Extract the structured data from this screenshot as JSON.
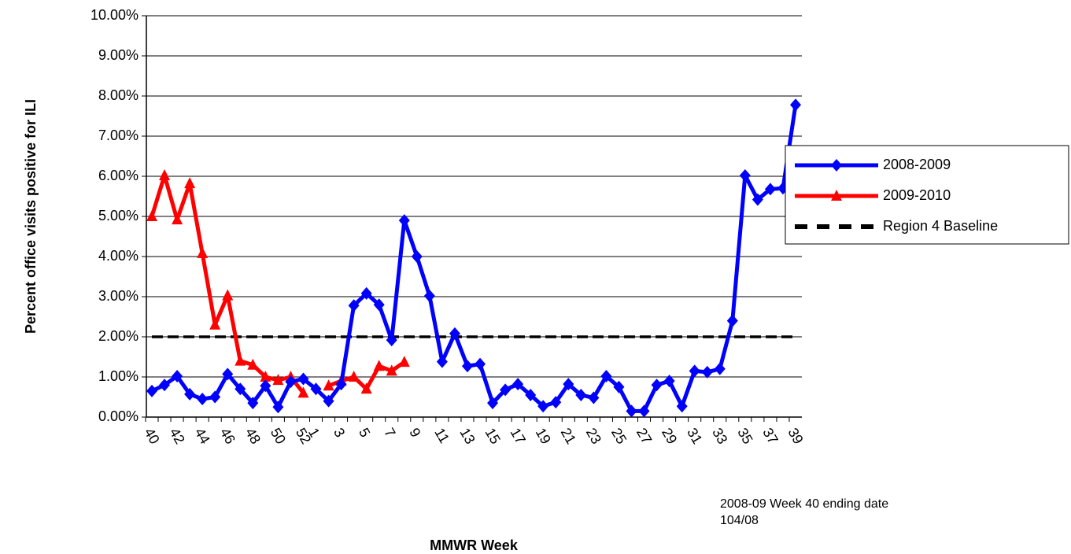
{
  "chart_data": {
    "type": "line",
    "y_label": "Percent office visits positive for ILI",
    "x_label": "MMWR Week",
    "note": [
      "2008-09 Week 40 ending date",
      "104/08"
    ],
    "categories": [
      "40",
      null,
      "42",
      null,
      "44",
      null,
      "46",
      null,
      "48",
      null,
      "50",
      null,
      "52",
      "1",
      null,
      "3",
      null,
      "5",
      null,
      "7",
      null,
      "9",
      null,
      "11",
      null,
      "13",
      null,
      "15",
      null,
      "17",
      null,
      "19",
      null,
      "21",
      null,
      "23",
      null,
      "25",
      null,
      "27",
      null,
      "29",
      null,
      "31",
      null,
      "33",
      null,
      "35",
      null,
      "37",
      null,
      "39"
    ],
    "series": [
      {
        "name": "2008-2009",
        "color": "#0000ff",
        "marker": "diamond",
        "values": [
          0.65,
          0.8,
          1.02,
          0.57,
          0.45,
          0.5,
          1.07,
          0.7,
          0.35,
          0.78,
          0.25,
          0.88,
          0.95,
          0.7,
          0.4,
          0.82,
          2.78,
          3.08,
          2.8,
          1.92,
          4.9,
          4.0,
          3.02,
          1.38,
          2.08,
          1.27,
          1.32,
          0.35,
          0.68,
          0.82,
          0.55,
          0.27,
          0.37,
          0.82,
          0.55,
          0.48,
          1.02,
          0.75,
          0.15,
          0.15,
          0.8,
          0.9,
          0.27,
          1.15,
          1.12,
          1.2,
          2.4,
          6.02,
          5.42,
          5.68,
          5.7,
          7.78
        ]
      },
      {
        "name": "2009-2010",
        "color": "#ff0000",
        "marker": "triangle",
        "values": [
          5.0,
          6.02,
          4.92,
          5.82,
          4.08,
          2.3,
          3.03,
          1.4,
          1.3,
          1.0,
          0.92,
          1.0,
          0.6,
          null,
          0.78,
          0.9,
          1.0,
          0.7,
          1.27,
          1.15,
          1.37,
          null,
          null,
          null,
          null,
          null,
          null,
          null,
          null,
          null,
          null,
          null,
          null,
          null,
          null,
          null,
          null,
          null,
          null,
          null,
          null,
          null,
          null,
          null,
          null,
          null,
          null,
          null,
          null,
          null,
          null,
          null
        ]
      },
      {
        "name": "Region 4 Baseline",
        "color": "#000000",
        "marker": "dash",
        "values": [
          2,
          2,
          2,
          2,
          2,
          2,
          2,
          2,
          2,
          2,
          2,
          2,
          2,
          2,
          2,
          2,
          2,
          2,
          2,
          2,
          2,
          2,
          2,
          2,
          2,
          2,
          2,
          2,
          2,
          2,
          2,
          2,
          2,
          2,
          2,
          2,
          2,
          2,
          2,
          2,
          2,
          2,
          2,
          2,
          2,
          2,
          2,
          2,
          2,
          2,
          2,
          2
        ]
      }
    ],
    "ylim": [
      0,
      10
    ],
    "yticks": [
      {
        "value": 0,
        "label": "0.00%"
      },
      {
        "value": 1,
        "label": "1.00%"
      },
      {
        "value": 2,
        "label": "2.00%"
      },
      {
        "value": 3,
        "label": "3.00%"
      },
      {
        "value": 4,
        "label": "4.00%"
      },
      {
        "value": 5,
        "label": "5.00%"
      },
      {
        "value": 6,
        "label": "6.00%"
      },
      {
        "value": 7,
        "label": "7.00%"
      },
      {
        "value": 8,
        "label": "8.00%"
      },
      {
        "value": 9,
        "label": "9.00%"
      },
      {
        "value": 10,
        "label": "10.00%"
      }
    ],
    "grid": true,
    "legend": "right"
  }
}
